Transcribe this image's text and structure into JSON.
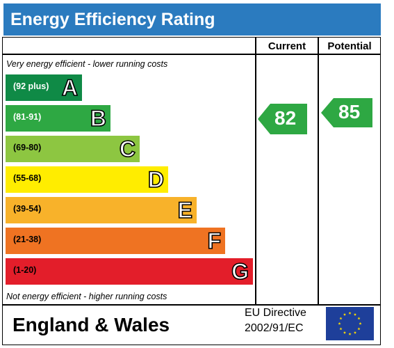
{
  "title": "Energy Efficiency Rating",
  "columns": {
    "current": "Current",
    "potential": "Potential"
  },
  "notes": {
    "top": "Very energy efficient - lower running costs",
    "bottom": "Not energy efficient - higher running costs"
  },
  "footer": {
    "region": "England & Wales",
    "directive_line1": "EU Directive",
    "directive_line2": "2002/91/EC"
  },
  "chart_data": {
    "type": "bar",
    "categories": [
      "A",
      "B",
      "C",
      "D",
      "E",
      "F",
      "G"
    ],
    "bands": [
      {
        "letter": "A",
        "range": "(92 plus)",
        "min": 92,
        "max": 100,
        "color": "#0f8a46",
        "range_color": "#ffffff"
      },
      {
        "letter": "B",
        "range": "(81-91)",
        "min": 81,
        "max": 91,
        "color": "#2ea843",
        "range_color": "#ffffff"
      },
      {
        "letter": "C",
        "range": "(69-80)",
        "min": 69,
        "max": 80,
        "color": "#8dc641",
        "range_color": "#000000"
      },
      {
        "letter": "D",
        "range": "(55-68)",
        "min": 55,
        "max": 68,
        "color": "#ffed00",
        "range_color": "#000000"
      },
      {
        "letter": "E",
        "range": "(39-54)",
        "min": 39,
        "max": 54,
        "color": "#f8b22a",
        "range_color": "#000000"
      },
      {
        "letter": "F",
        "range": "(21-38)",
        "min": 21,
        "max": 38,
        "color": "#ef7322",
        "range_color": "#000000"
      },
      {
        "letter": "G",
        "range": "(1-20)",
        "min": 1,
        "max": 20,
        "color": "#e31e2a",
        "range_color": "#000000"
      }
    ],
    "current": {
      "value": 82,
      "band": "B"
    },
    "potential": {
      "value": 85,
      "band": "B"
    }
  },
  "colors": {
    "title_bar": "#2b7bbf",
    "eu_flag": "#1e3f9a",
    "eu_stars": "#ffdd00"
  }
}
